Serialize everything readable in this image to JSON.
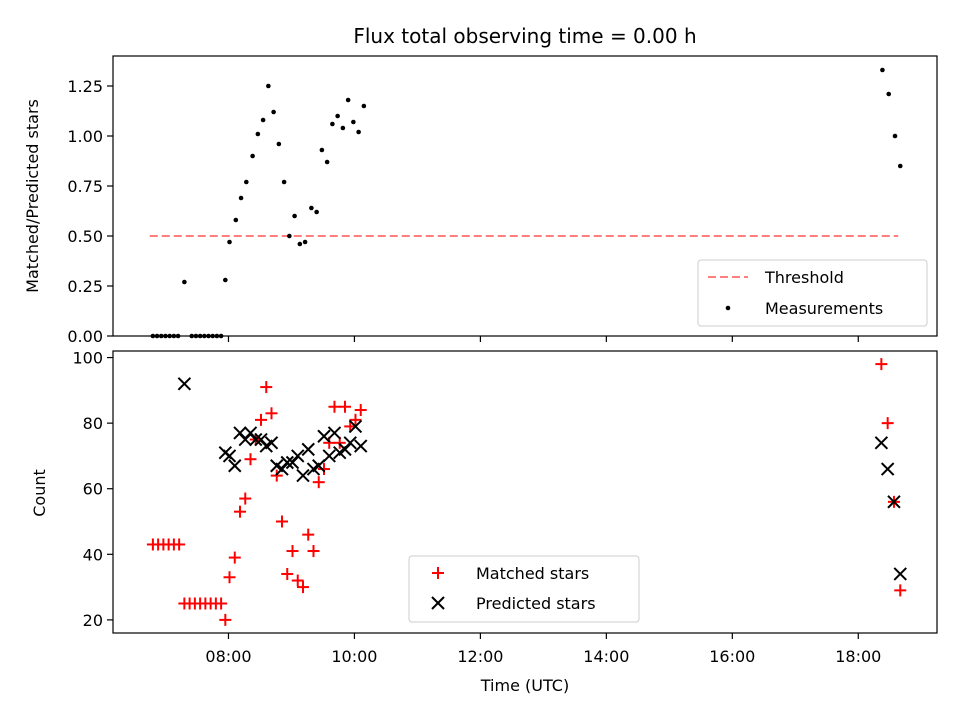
{
  "chart_data": [
    {
      "type": "scatter",
      "title": "Flux total observing time = 0.00 h",
      "xlabel": "",
      "ylabel": "Matched/Predicted stars",
      "xlim": [
        "06:10",
        "19:15"
      ],
      "ylim": [
        0,
        1.4
      ],
      "xticks": [
        "08:00",
        "10:00",
        "12:00",
        "14:00",
        "16:00",
        "18:00"
      ],
      "yticks": [
        "0.00",
        "0.25",
        "0.50",
        "0.75",
        "1.00",
        "1.25"
      ],
      "threshold": {
        "name": "Threshold",
        "color": "#ff7f7f",
        "y": 0.5,
        "x_start": "06:45",
        "x_end": "18:38"
      },
      "series": [
        {
          "name": "Measurements",
          "color": "#000000",
          "points": [
            [
              "06:48",
              0.0
            ],
            [
              "06:52",
              0.0
            ],
            [
              "06:56",
              0.0
            ],
            [
              "07:00",
              0.0
            ],
            [
              "07:04",
              0.0
            ],
            [
              "07:08",
              0.0
            ],
            [
              "07:12",
              0.0
            ],
            [
              "07:18",
              0.27
            ],
            [
              "07:25",
              0.0
            ],
            [
              "07:29",
              0.0
            ],
            [
              "07:33",
              0.0
            ],
            [
              "07:37",
              0.0
            ],
            [
              "07:41",
              0.0
            ],
            [
              "07:45",
              0.0
            ],
            [
              "07:49",
              0.0
            ],
            [
              "07:53",
              0.0
            ],
            [
              "07:57",
              0.28
            ],
            [
              "08:01",
              0.47
            ],
            [
              "08:07",
              0.58
            ],
            [
              "08:12",
              0.69
            ],
            [
              "08:17",
              0.77
            ],
            [
              "08:23",
              0.9
            ],
            [
              "08:28",
              1.01
            ],
            [
              "08:33",
              1.08
            ],
            [
              "08:38",
              1.25
            ],
            [
              "08:43",
              1.12
            ],
            [
              "08:48",
              0.96
            ],
            [
              "08:53",
              0.77
            ],
            [
              "08:58",
              0.5
            ],
            [
              "09:03",
              0.6
            ],
            [
              "09:08",
              0.46
            ],
            [
              "09:13",
              0.47
            ],
            [
              "09:19",
              0.64
            ],
            [
              "09:24",
              0.62
            ],
            [
              "09:29",
              0.93
            ],
            [
              "09:34",
              0.87
            ],
            [
              "09:39",
              1.06
            ],
            [
              "09:44",
              1.1
            ],
            [
              "09:49",
              1.04
            ],
            [
              "09:54",
              1.18
            ],
            [
              "09:59",
              1.07
            ],
            [
              "10:04",
              1.02
            ],
            [
              "10:09",
              1.15
            ],
            [
              "18:23",
              1.33
            ],
            [
              "18:29",
              1.21
            ],
            [
              "18:35",
              1.0
            ],
            [
              "18:40",
              0.85
            ]
          ]
        }
      ],
      "legend": {
        "location": "lower-right",
        "entries": [
          "Threshold",
          "Measurements"
        ]
      }
    },
    {
      "type": "scatter",
      "title": "",
      "xlabel": "Time (UTC)",
      "ylabel": "Count",
      "xlim": [
        "06:10",
        "19:15"
      ],
      "ylim": [
        16,
        102
      ],
      "xticks": [
        "08:00",
        "10:00",
        "12:00",
        "14:00",
        "16:00",
        "18:00"
      ],
      "yticks": [
        "20",
        "40",
        "60",
        "80",
        "100"
      ],
      "series": [
        {
          "name": "Matched stars",
          "marker": "plus",
          "color": "#ff0000",
          "points": [
            [
              "06:48",
              43
            ],
            [
              "06:53",
              43
            ],
            [
              "06:58",
              43
            ],
            [
              "07:03",
              43
            ],
            [
              "07:08",
              43
            ],
            [
              "07:13",
              43
            ],
            [
              "07:18",
              25
            ],
            [
              "07:23",
              25
            ],
            [
              "07:28",
              25
            ],
            [
              "07:33",
              25
            ],
            [
              "07:38",
              25
            ],
            [
              "07:43",
              25
            ],
            [
              "07:48",
              25
            ],
            [
              "07:53",
              25
            ],
            [
              "07:57",
              20
            ],
            [
              "08:01",
              33
            ],
            [
              "08:06",
              39
            ],
            [
              "08:11",
              53
            ],
            [
              "08:16",
              57
            ],
            [
              "08:21",
              69
            ],
            [
              "08:26",
              75
            ],
            [
              "08:31",
              81
            ],
            [
              "08:36",
              91
            ],
            [
              "08:41",
              83
            ],
            [
              "08:46",
              64
            ],
            [
              "08:51",
              50
            ],
            [
              "08:56",
              34
            ],
            [
              "09:01",
              41
            ],
            [
              "09:06",
              32
            ],
            [
              "09:11",
              30
            ],
            [
              "09:16",
              46
            ],
            [
              "09:21",
              41
            ],
            [
              "09:26",
              62
            ],
            [
              "09:31",
              66
            ],
            [
              "09:36",
              74
            ],
            [
              "09:41",
              85
            ],
            [
              "09:46",
              74
            ],
            [
              "09:51",
              85
            ],
            [
              "09:56",
              79
            ],
            [
              "10:01",
              81
            ],
            [
              "10:06",
              84
            ],
            [
              "18:22",
              98
            ],
            [
              "18:28",
              80
            ],
            [
              "18:34",
              56
            ],
            [
              "18:40",
              29
            ]
          ]
        },
        {
          "name": "Predicted stars",
          "marker": "x",
          "color": "#000000",
          "points": [
            [
              "07:18",
              92
            ],
            [
              "07:57",
              71
            ],
            [
              "08:01",
              70
            ],
            [
              "08:06",
              67
            ],
            [
              "08:11",
              77
            ],
            [
              "08:16",
              75
            ],
            [
              "08:21",
              77
            ],
            [
              "08:26",
              75
            ],
            [
              "08:31",
              75
            ],
            [
              "08:36",
              73
            ],
            [
              "08:41",
              74
            ],
            [
              "08:46",
              67
            ],
            [
              "08:51",
              66
            ],
            [
              "08:56",
              68
            ],
            [
              "09:01",
              68
            ],
            [
              "09:06",
              70
            ],
            [
              "09:11",
              64
            ],
            [
              "09:16",
              72
            ],
            [
              "09:21",
              66
            ],
            [
              "09:26",
              67
            ],
            [
              "09:31",
              76
            ],
            [
              "09:36",
              70
            ],
            [
              "09:41",
              77
            ],
            [
              "09:46",
              71
            ],
            [
              "09:51",
              72
            ],
            [
              "09:56",
              74
            ],
            [
              "10:01",
              79
            ],
            [
              "10:06",
              73
            ],
            [
              "18:22",
              74
            ],
            [
              "18:28",
              66
            ],
            [
              "18:34",
              56
            ],
            [
              "18:40",
              34
            ]
          ]
        }
      ],
      "legend": {
        "location": "lower-center",
        "entries": [
          "Matched stars",
          "Predicted stars"
        ]
      }
    }
  ]
}
